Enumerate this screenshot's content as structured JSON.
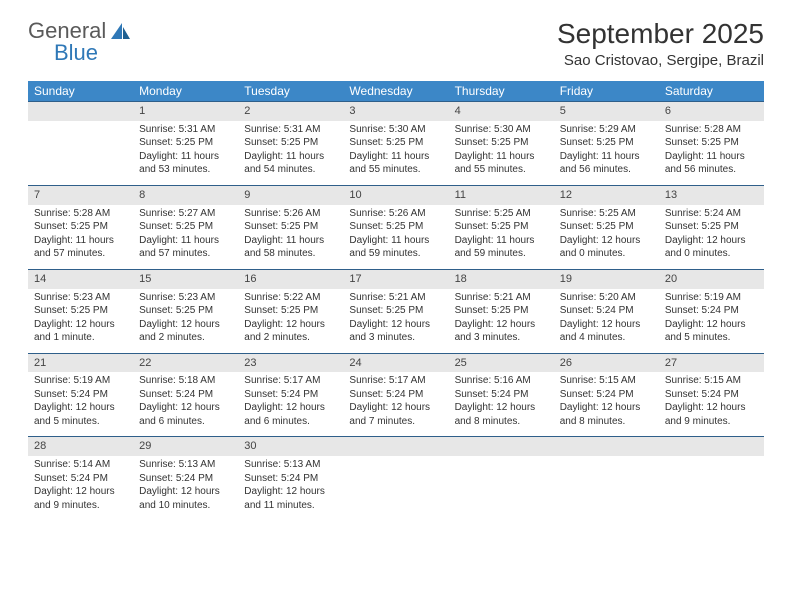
{
  "logo": {
    "text1": "General",
    "text2": "Blue"
  },
  "title": "September 2025",
  "location": "Sao Cristovao, Sergipe, Brazil",
  "colors": {
    "header_bg": "#3c87c7",
    "header_text": "#ffffff",
    "daynum_bg": "#e7e7e7",
    "row_border": "#2f5f8a",
    "logo_gray": "#5a5a5a",
    "logo_blue": "#2f78b7"
  },
  "day_headers": [
    "Sunday",
    "Monday",
    "Tuesday",
    "Wednesday",
    "Thursday",
    "Friday",
    "Saturday"
  ],
  "weeks": [
    {
      "nums": [
        "",
        "1",
        "2",
        "3",
        "4",
        "5",
        "6"
      ],
      "cells": [
        {
          "lines": []
        },
        {
          "lines": [
            "Sunrise: 5:31 AM",
            "Sunset: 5:25 PM",
            "Daylight: 11 hours",
            "and 53 minutes."
          ]
        },
        {
          "lines": [
            "Sunrise: 5:31 AM",
            "Sunset: 5:25 PM",
            "Daylight: 11 hours",
            "and 54 minutes."
          ]
        },
        {
          "lines": [
            "Sunrise: 5:30 AM",
            "Sunset: 5:25 PM",
            "Daylight: 11 hours",
            "and 55 minutes."
          ]
        },
        {
          "lines": [
            "Sunrise: 5:30 AM",
            "Sunset: 5:25 PM",
            "Daylight: 11 hours",
            "and 55 minutes."
          ]
        },
        {
          "lines": [
            "Sunrise: 5:29 AM",
            "Sunset: 5:25 PM",
            "Daylight: 11 hours",
            "and 56 minutes."
          ]
        },
        {
          "lines": [
            "Sunrise: 5:28 AM",
            "Sunset: 5:25 PM",
            "Daylight: 11 hours",
            "and 56 minutes."
          ]
        }
      ]
    },
    {
      "nums": [
        "7",
        "8",
        "9",
        "10",
        "11",
        "12",
        "13"
      ],
      "cells": [
        {
          "lines": [
            "Sunrise: 5:28 AM",
            "Sunset: 5:25 PM",
            "Daylight: 11 hours",
            "and 57 minutes."
          ]
        },
        {
          "lines": [
            "Sunrise: 5:27 AM",
            "Sunset: 5:25 PM",
            "Daylight: 11 hours",
            "and 57 minutes."
          ]
        },
        {
          "lines": [
            "Sunrise: 5:26 AM",
            "Sunset: 5:25 PM",
            "Daylight: 11 hours",
            "and 58 minutes."
          ]
        },
        {
          "lines": [
            "Sunrise: 5:26 AM",
            "Sunset: 5:25 PM",
            "Daylight: 11 hours",
            "and 59 minutes."
          ]
        },
        {
          "lines": [
            "Sunrise: 5:25 AM",
            "Sunset: 5:25 PM",
            "Daylight: 11 hours",
            "and 59 minutes."
          ]
        },
        {
          "lines": [
            "Sunrise: 5:25 AM",
            "Sunset: 5:25 PM",
            "Daylight: 12 hours",
            "and 0 minutes."
          ]
        },
        {
          "lines": [
            "Sunrise: 5:24 AM",
            "Sunset: 5:25 PM",
            "Daylight: 12 hours",
            "and 0 minutes."
          ]
        }
      ]
    },
    {
      "nums": [
        "14",
        "15",
        "16",
        "17",
        "18",
        "19",
        "20"
      ],
      "cells": [
        {
          "lines": [
            "Sunrise: 5:23 AM",
            "Sunset: 5:25 PM",
            "Daylight: 12 hours",
            "and 1 minute."
          ]
        },
        {
          "lines": [
            "Sunrise: 5:23 AM",
            "Sunset: 5:25 PM",
            "Daylight: 12 hours",
            "and 2 minutes."
          ]
        },
        {
          "lines": [
            "Sunrise: 5:22 AM",
            "Sunset: 5:25 PM",
            "Daylight: 12 hours",
            "and 2 minutes."
          ]
        },
        {
          "lines": [
            "Sunrise: 5:21 AM",
            "Sunset: 5:25 PM",
            "Daylight: 12 hours",
            "and 3 minutes."
          ]
        },
        {
          "lines": [
            "Sunrise: 5:21 AM",
            "Sunset: 5:25 PM",
            "Daylight: 12 hours",
            "and 3 minutes."
          ]
        },
        {
          "lines": [
            "Sunrise: 5:20 AM",
            "Sunset: 5:24 PM",
            "Daylight: 12 hours",
            "and 4 minutes."
          ]
        },
        {
          "lines": [
            "Sunrise: 5:19 AM",
            "Sunset: 5:24 PM",
            "Daylight: 12 hours",
            "and 5 minutes."
          ]
        }
      ]
    },
    {
      "nums": [
        "21",
        "22",
        "23",
        "24",
        "25",
        "26",
        "27"
      ],
      "cells": [
        {
          "lines": [
            "Sunrise: 5:19 AM",
            "Sunset: 5:24 PM",
            "Daylight: 12 hours",
            "and 5 minutes."
          ]
        },
        {
          "lines": [
            "Sunrise: 5:18 AM",
            "Sunset: 5:24 PM",
            "Daylight: 12 hours",
            "and 6 minutes."
          ]
        },
        {
          "lines": [
            "Sunrise: 5:17 AM",
            "Sunset: 5:24 PM",
            "Daylight: 12 hours",
            "and 6 minutes."
          ]
        },
        {
          "lines": [
            "Sunrise: 5:17 AM",
            "Sunset: 5:24 PM",
            "Daylight: 12 hours",
            "and 7 minutes."
          ]
        },
        {
          "lines": [
            "Sunrise: 5:16 AM",
            "Sunset: 5:24 PM",
            "Daylight: 12 hours",
            "and 8 minutes."
          ]
        },
        {
          "lines": [
            "Sunrise: 5:15 AM",
            "Sunset: 5:24 PM",
            "Daylight: 12 hours",
            "and 8 minutes."
          ]
        },
        {
          "lines": [
            "Sunrise: 5:15 AM",
            "Sunset: 5:24 PM",
            "Daylight: 12 hours",
            "and 9 minutes."
          ]
        }
      ]
    },
    {
      "nums": [
        "28",
        "29",
        "30",
        "",
        "",
        "",
        ""
      ],
      "cells": [
        {
          "lines": [
            "Sunrise: 5:14 AM",
            "Sunset: 5:24 PM",
            "Daylight: 12 hours",
            "and 9 minutes."
          ]
        },
        {
          "lines": [
            "Sunrise: 5:13 AM",
            "Sunset: 5:24 PM",
            "Daylight: 12 hours",
            "and 10 minutes."
          ]
        },
        {
          "lines": [
            "Sunrise: 5:13 AM",
            "Sunset: 5:24 PM",
            "Daylight: 12 hours",
            "and 11 minutes."
          ]
        },
        {
          "lines": []
        },
        {
          "lines": []
        },
        {
          "lines": []
        },
        {
          "lines": []
        }
      ]
    }
  ]
}
